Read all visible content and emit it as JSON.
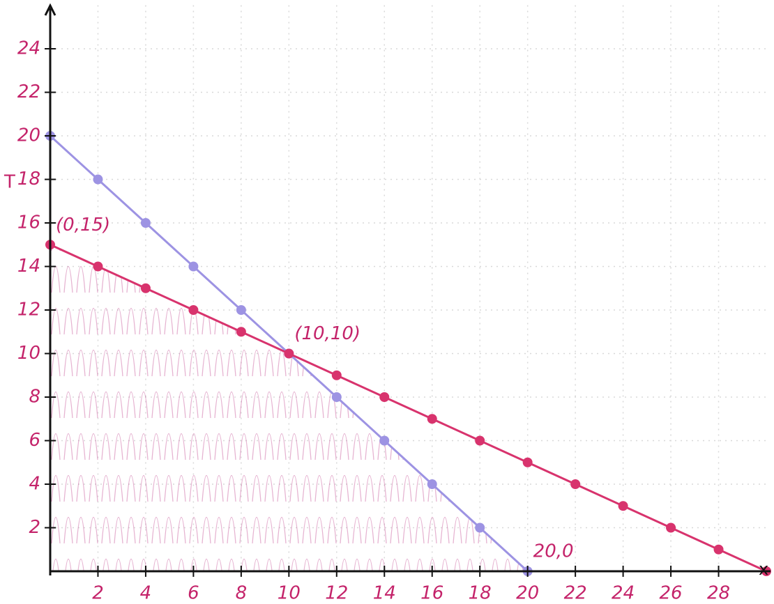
{
  "chart_data": {
    "type": "line",
    "x_label": "x",
    "y_label": "T",
    "x": [
      0,
      2,
      4,
      6,
      8,
      10,
      12,
      14,
      16,
      18,
      20,
      22,
      24,
      26,
      28,
      30
    ],
    "series": [
      {
        "color": "#9d93e3",
        "values": [
          20,
          18,
          16,
          14,
          12,
          10,
          8,
          6,
          4,
          2,
          0,
          null,
          null,
          null,
          null,
          null
        ]
      },
      {
        "color": "#d8336d",
        "values": [
          15,
          14,
          13,
          12,
          11,
          10,
          9,
          8,
          7,
          6,
          5,
          4,
          3,
          2,
          1,
          0
        ]
      }
    ],
    "xlim": [
      0,
      30
    ],
    "ylim": [
      0,
      26
    ],
    "xticks": [
      2,
      4,
      6,
      8,
      10,
      12,
      14,
      16,
      18,
      20,
      22,
      24,
      26,
      28
    ],
    "yticks": [
      2,
      4,
      6,
      8,
      10,
      12,
      14,
      16,
      18,
      20,
      22,
      24
    ],
    "grid": true,
    "annotations": [
      {
        "text": "(0,15)",
        "x": 0,
        "y": 15
      },
      {
        "text": "(10,10)",
        "x": 10,
        "y": 10
      },
      {
        "text": "20,0",
        "x": 20,
        "y": 0
      }
    ]
  }
}
